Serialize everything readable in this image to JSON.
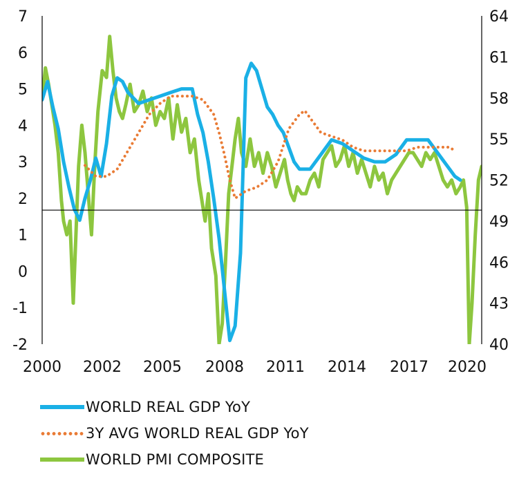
{
  "chart_data": {
    "type": "line",
    "title": "",
    "x_ticks": [
      "2000",
      "2002",
      "2005",
      "2008",
      "2011",
      "2014",
      "2017",
      "2020"
    ],
    "xlim": [
      2000.0,
      2020.5
    ],
    "y_left": {
      "ticks": [
        "7",
        "6",
        "5",
        "4",
        "3",
        "2",
        "1",
        "0",
        "-1",
        "-2"
      ],
      "ylim": [
        -2,
        7
      ]
    },
    "y_right": {
      "ticks": [
        "64",
        "61",
        "58",
        "55",
        "52",
        "49",
        "46",
        "43",
        "40"
      ],
      "ylim": [
        40,
        64
      ]
    },
    "reference_line": {
      "axis": "right",
      "value": 49.8
    },
    "legend_position": "bottom",
    "grid": false,
    "series": [
      {
        "name": "WORLD REAL GDP YoY",
        "axis": "left",
        "color": "#1ab0e6",
        "style": "solid",
        "x": [
          2000.0,
          2000.25,
          2000.5,
          2000.75,
          2001.0,
          2001.25,
          2001.5,
          2001.75,
          2002.0,
          2002.25,
          2002.5,
          2002.75,
          2003.0,
          2003.25,
          2003.5,
          2003.75,
          2004.0,
          2004.5,
          2005.0,
          2005.5,
          2006.0,
          2006.5,
          2007.0,
          2007.25,
          2007.5,
          2007.75,
          2008.0,
          2008.25,
          2008.5,
          2008.75,
          2009.0,
          2009.25,
          2009.5,
          2009.75,
          2010.0,
          2010.25,
          2010.5,
          2010.75,
          2011.0,
          2011.25,
          2011.5,
          2011.75,
          2012.0,
          2012.5,
          2013.0,
          2013.5,
          2014.0,
          2014.5,
          2015.0,
          2015.5,
          2016.0,
          2016.5,
          2017.0,
          2017.5,
          2018.0,
          2018.5,
          2019.0,
          2019.25,
          2019.5
        ],
        "values": [
          4.7,
          5.2,
          4.5,
          3.9,
          3.0,
          2.3,
          1.7,
          1.4,
          2.0,
          2.5,
          3.1,
          2.6,
          3.5,
          4.8,
          5.3,
          5.2,
          4.9,
          4.6,
          4.7,
          4.8,
          4.9,
          5.0,
          5.0,
          4.3,
          3.8,
          3.0,
          2.0,
          0.9,
          -0.5,
          -1.9,
          -1.5,
          0.5,
          5.3,
          5.7,
          5.5,
          5.0,
          4.5,
          4.3,
          4.0,
          3.8,
          3.4,
          3.0,
          2.8,
          2.8,
          3.2,
          3.6,
          3.5,
          3.3,
          3.1,
          3.0,
          3.0,
          3.2,
          3.6,
          3.6,
          3.6,
          3.2,
          2.8,
          2.6,
          2.5
        ]
      },
      {
        "name": "3Y AVG WORLD REAL GDP YoY",
        "axis": "left",
        "color": "#e97b35",
        "style": "dotted",
        "x": [
          2002.0,
          2002.5,
          2003.0,
          2003.5,
          2004.0,
          2004.5,
          2005.0,
          2005.5,
          2006.0,
          2006.5,
          2007.0,
          2007.5,
          2008.0,
          2008.25,
          2008.5,
          2008.75,
          2009.0,
          2009.25,
          2009.5,
          2010.0,
          2010.5,
          2011.0,
          2011.5,
          2012.0,
          2012.25,
          2012.5,
          2012.75,
          2013.0,
          2013.5,
          2014.0,
          2014.5,
          2015.0,
          2015.5,
          2016.0,
          2016.5,
          2017.0,
          2017.5,
          2018.0,
          2018.5,
          2019.0,
          2019.25
        ],
        "values": [
          2.9,
          2.6,
          2.6,
          2.8,
          3.3,
          3.8,
          4.3,
          4.6,
          4.8,
          4.8,
          4.8,
          4.7,
          4.3,
          3.8,
          3.2,
          2.5,
          2.0,
          2.1,
          2.2,
          2.3,
          2.5,
          3.0,
          3.9,
          4.3,
          4.4,
          4.2,
          4.0,
          3.8,
          3.7,
          3.6,
          3.4,
          3.3,
          3.3,
          3.3,
          3.3,
          3.3,
          3.4,
          3.4,
          3.4,
          3.4,
          3.3
        ]
      },
      {
        "name": "WORLD PMI COMPOSITE",
        "axis": "right",
        "color": "#8dc63f",
        "style": "solid",
        "x": [
          2000.0,
          2000.15,
          2000.3,
          2000.45,
          2000.6,
          2000.75,
          2000.9,
          2001.0,
          2001.15,
          2001.3,
          2001.45,
          2001.55,
          2001.7,
          2001.85,
          2002.0,
          2002.15,
          2002.3,
          2002.45,
          2002.6,
          2002.8,
          2003.0,
          2003.15,
          2003.3,
          2003.45,
          2003.6,
          2003.75,
          2003.9,
          2004.1,
          2004.3,
          2004.5,
          2004.7,
          2004.9,
          2005.1,
          2005.3,
          2005.5,
          2005.7,
          2005.9,
          2006.1,
          2006.3,
          2006.5,
          2006.7,
          2006.9,
          2007.1,
          2007.3,
          2007.5,
          2007.6,
          2007.75,
          2007.9,
          2008.1,
          2008.25,
          2008.4,
          2008.55,
          2008.7,
          2008.85,
          2009.0,
          2009.15,
          2009.3,
          2009.5,
          2009.7,
          2009.9,
          2010.1,
          2010.3,
          2010.5,
          2010.7,
          2010.9,
          2011.1,
          2011.3,
          2011.45,
          2011.6,
          2011.75,
          2011.9,
          2012.1,
          2012.3,
          2012.5,
          2012.7,
          2012.9,
          2013.1,
          2013.3,
          2013.5,
          2013.7,
          2013.9,
          2014.1,
          2014.3,
          2014.5,
          2014.7,
          2014.9,
          2015.1,
          2015.3,
          2015.5,
          2015.7,
          2015.9,
          2016.1,
          2016.3,
          2016.5,
          2016.7,
          2016.9,
          2017.1,
          2017.3,
          2017.5,
          2017.7,
          2017.9,
          2018.1,
          2018.3,
          2018.5,
          2018.7,
          2018.9,
          2019.1,
          2019.3,
          2019.5,
          2019.65,
          2019.8,
          2019.92,
          2020.05,
          2020.2,
          2020.35,
          2020.5
        ],
        "values": [
          58.0,
          60.2,
          59.0,
          57.5,
          56.0,
          54.0,
          50.5,
          49.0,
          48.0,
          49.0,
          43.0,
          47.0,
          53.0,
          56.0,
          54.0,
          51.0,
          48.0,
          53.0,
          57.0,
          60.0,
          59.5,
          62.5,
          60.0,
          58.0,
          57.0,
          56.5,
          57.5,
          59.0,
          57.0,
          57.5,
          58.5,
          57.0,
          58.0,
          56.0,
          57.0,
          56.5,
          58.0,
          55.0,
          57.5,
          55.5,
          56.5,
          54.0,
          55.0,
          52.0,
          50.0,
          49.0,
          51.0,
          47.0,
          45.0,
          40.0,
          41.5,
          46.0,
          51.0,
          53.0,
          55.0,
          56.5,
          54.0,
          53.0,
          55.0,
          53.0,
          54.0,
          52.5,
          54.0,
          53.0,
          51.5,
          52.5,
          53.5,
          52.0,
          51.0,
          50.5,
          51.5,
          51.0,
          51.0,
          52.0,
          52.5,
          51.5,
          53.5,
          54.0,
          54.5,
          53.0,
          53.5,
          54.5,
          53.0,
          54.0,
          52.5,
          53.5,
          52.5,
          51.5,
          53.0,
          52.0,
          52.5,
          51.0,
          52.0,
          52.5,
          53.0,
          53.5,
          54.0,
          54.0,
          53.5,
          53.0,
          54.0,
          53.5,
          54.0,
          53.0,
          52.0,
          51.5,
          52.0,
          51.0,
          51.5,
          52.0,
          50.0,
          40.0,
          43.0,
          48.0,
          52.0,
          53.0
        ]
      }
    ]
  },
  "legend": {
    "items": [
      {
        "label": "WORLD REAL GDP YoY",
        "color": "#1ab0e6",
        "style": "solid"
      },
      {
        "label": "3Y AVG WORLD REAL GDP YoY",
        "color": "#e97b35",
        "style": "dotted"
      },
      {
        "label": "WORLD PMI COMPOSITE",
        "color": "#8dc63f",
        "style": "solid"
      }
    ]
  }
}
